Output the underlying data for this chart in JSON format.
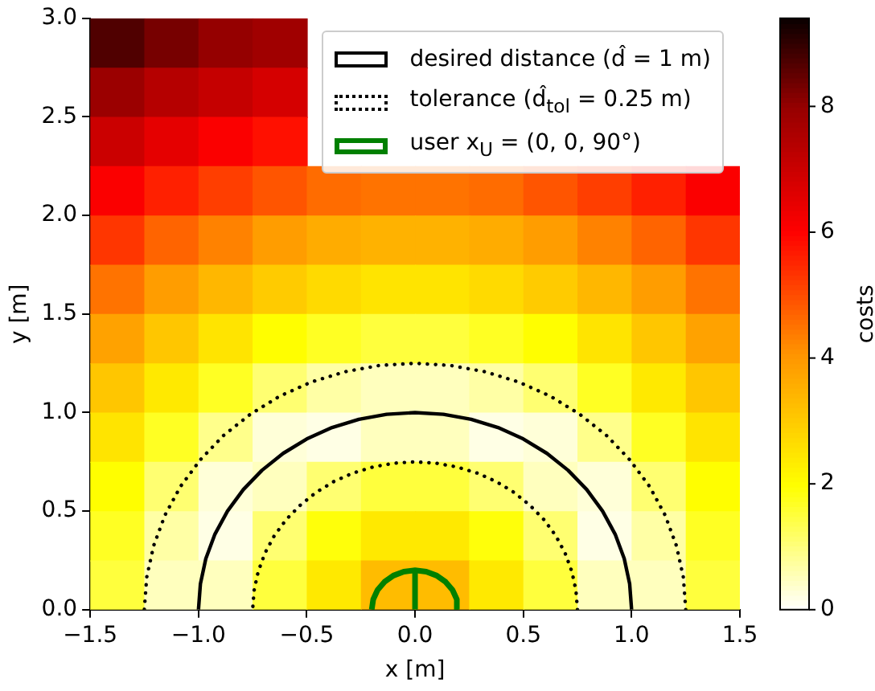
{
  "chart_data": {
    "type": "heatmap",
    "xlabel": "x [m]",
    "ylabel": "y [m]",
    "clabel": "costs",
    "cells": [
      [
        8.7,
        8.3,
        8.0,
        7.8,
        null,
        null,
        null,
        null,
        null,
        null,
        null,
        null
      ],
      [
        7.9,
        7.4,
        7.1,
        6.8,
        null,
        null,
        null,
        null,
        null,
        null,
        null,
        null
      ],
      [
        7.0,
        6.5,
        6.1,
        5.8,
        null,
        null,
        null,
        null,
        null,
        null,
        null,
        null
      ],
      [
        6.1,
        5.6,
        5.2,
        4.9,
        4.6,
        4.5,
        4.5,
        4.6,
        4.9,
        5.2,
        5.6,
        6.1
      ],
      [
        5.3,
        4.7,
        4.3,
        3.9,
        3.6,
        3.5,
        3.5,
        3.6,
        3.9,
        4.3,
        4.7,
        5.3
      ],
      [
        4.5,
        3.9,
        3.4,
        3.0,
        2.7,
        2.5,
        2.5,
        2.7,
        3.0,
        3.4,
        3.9,
        4.5
      ],
      [
        3.8,
        3.1,
        2.5,
        2.0,
        1.7,
        1.5,
        1.5,
        1.7,
        2.0,
        2.5,
        3.1,
        3.8
      ],
      [
        3.1,
        2.4,
        1.7,
        1.1,
        0.7,
        0.5,
        0.5,
        0.7,
        1.1,
        1.7,
        2.4,
        3.1
      ],
      [
        2.5,
        1.7,
        0.9,
        0.3,
        0.2,
        0.5,
        0.5,
        0.2,
        0.3,
        0.9,
        1.7,
        2.5
      ],
      [
        2.0,
        1.1,
        0.3,
        0.5,
        1.1,
        1.5,
        1.5,
        1.1,
        0.5,
        0.3,
        1.1,
        2.0
      ],
      [
        1.7,
        0.7,
        0.2,
        1.1,
        1.9,
        2.4,
        2.4,
        1.9,
        1.1,
        0.2,
        0.7,
        1.7
      ],
      [
        1.5,
        0.5,
        0.5,
        1.5,
        2.4,
        3.3,
        3.3,
        2.4,
        1.5,
        0.5,
        0.5,
        1.5
      ]
    ],
    "clim": [
      0,
      9.4
    ],
    "cticks": [
      0,
      2,
      4,
      6,
      8
    ],
    "xlim": [
      -1.5,
      1.5
    ],
    "xticks": [
      {
        "value": -1.5,
        "label": "−1.5"
      },
      {
        "value": -1,
        "label": "−1.0"
      },
      {
        "value": -0.5,
        "label": "−0.5"
      },
      {
        "value": 0,
        "label": "0.0"
      },
      {
        "value": 0.5,
        "label": "0.5"
      },
      {
        "value": 1,
        "label": "1.0"
      },
      {
        "value": 1.5,
        "label": "1.5"
      }
    ],
    "ylim": [
      0,
      3
    ],
    "yticks": [
      {
        "value": 0,
        "label": "0.0"
      },
      {
        "value": 0.5,
        "label": "0.5"
      },
      {
        "value": 1,
        "label": "1.0"
      },
      {
        "value": 1.5,
        "label": "1.5"
      },
      {
        "value": 2,
        "label": "2.0"
      },
      {
        "value": 2.5,
        "label": "2.5"
      },
      {
        "value": 3,
        "label": "3.0"
      }
    ],
    "legend": "top right",
    "grid": false,
    "series": [
      {
        "type": "line",
        "name": "desired distance (d̂ = 1 m)",
        "color": "#000000",
        "line_style": "solid",
        "x": [
          1,
          0.991,
          0.966,
          0.924,
          0.866,
          0.793,
          0.707,
          0.609,
          0.5,
          0.383,
          0.259,
          0.131,
          0,
          -0.131,
          -0.259,
          -0.383,
          -0.5,
          -0.609,
          -0.707,
          -0.793,
          -0.866,
          -0.924,
          -0.966,
          -0.991,
          -1
        ],
        "values": [
          0,
          0.131,
          0.259,
          0.383,
          0.5,
          0.609,
          0.707,
          0.793,
          0.866,
          0.924,
          0.966,
          0.991,
          1,
          0.991,
          0.966,
          0.924,
          0.866,
          0.793,
          0.707,
          0.609,
          0.5,
          0.383,
          0.259,
          0.131,
          0
        ]
      },
      {
        "type": "line",
        "name": "tolerance (d̂$_{tol}$ = 0.25 m)",
        "color": "#000000",
        "line_style": "dotted",
        "x": [
          1.25,
          1.239,
          1.207,
          1.155,
          1.083,
          0.991,
          0.884,
          0.761,
          0.625,
          0.479,
          0.324,
          0.164,
          0,
          -0.164,
          -0.324,
          -0.479,
          -0.625,
          -0.761,
          -0.884,
          -0.991,
          -1.083,
          -1.155,
          -1.207,
          -1.239,
          -1.25
        ],
        "values": [
          0,
          0.164,
          0.324,
          0.479,
          0.625,
          0.761,
          0.884,
          0.991,
          1.083,
          1.155,
          1.207,
          1.239,
          1.25,
          1.239,
          1.207,
          1.155,
          1.083,
          0.991,
          0.884,
          0.761,
          0.625,
          0.479,
          0.324,
          0.164,
          0
        ]
      },
      {
        "type": "line",
        "color": "#000000",
        "line_style": "dotted",
        "x": [
          0.75,
          0.743,
          0.724,
          0.693,
          0.65,
          0.595,
          0.53,
          0.457,
          0.375,
          0.287,
          0.194,
          0.098,
          0,
          -0.098,
          -0.194,
          -0.287,
          -0.375,
          -0.457,
          -0.53,
          -0.595,
          -0.65,
          -0.693,
          -0.724,
          -0.743,
          -0.75
        ],
        "values": [
          0,
          0.098,
          0.194,
          0.287,
          0.375,
          0.457,
          0.53,
          0.595,
          0.65,
          0.693,
          0.724,
          0.743,
          0.75,
          0.743,
          0.724,
          0.693,
          0.65,
          0.595,
          0.53,
          0.457,
          0.375,
          0.287,
          0.194,
          0.098,
          0
        ]
      },
      {
        "type": "line",
        "name": "user x$_{U}$ = (0, 0, 90°)",
        "color": "#008000",
        "line_style": "solid",
        "x": [
          0.2,
          0.193,
          0.173,
          0.141,
          0.1,
          0.052,
          0,
          -0.052,
          -0.1,
          -0.141,
          -0.173,
          -0.193,
          -0.2
        ],
        "values": [
          0,
          0.052,
          0.1,
          0.141,
          0.173,
          0.193,
          0.2,
          0.193,
          0.173,
          0.141,
          0.1,
          0.052,
          0
        ]
      },
      {
        "type": "line",
        "color": "#008000",
        "line_style": "solid",
        "x": [
          0,
          0
        ],
        "values": [
          0,
          0.2
        ]
      }
    ]
  }
}
